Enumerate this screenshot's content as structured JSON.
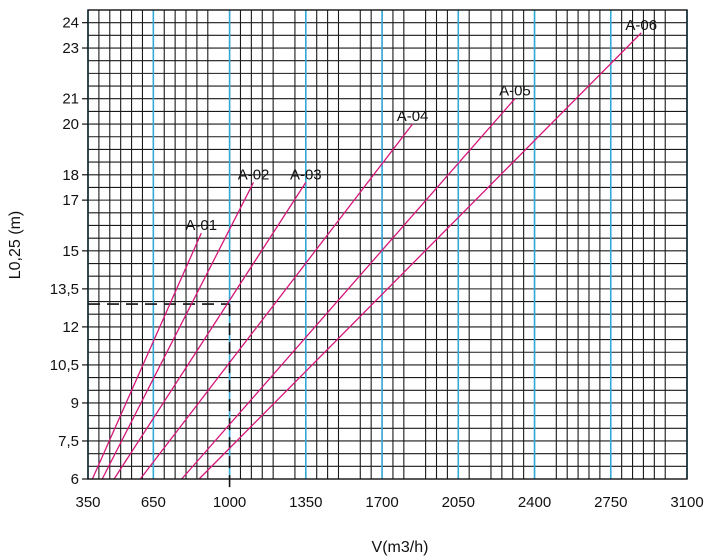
{
  "chart_data": {
    "type": "line",
    "xlabel": "V(m3/h)",
    "ylabel": "L0,25 (m)",
    "xlim": [
      350,
      3100
    ],
    "ylim": [
      6,
      24.5
    ],
    "x_ticks": [
      "350",
      "650",
      "1000",
      "1350",
      "1700",
      "2050",
      "2400",
      "2750",
      "3100"
    ],
    "y_ticks": [
      "6",
      "7,5",
      "9",
      "10,5",
      "12",
      "13,5",
      "15",
      "17",
      "18",
      "20",
      "21",
      "23",
      "24"
    ],
    "grid": true,
    "colors": {
      "grid_minor": "#1a1a1a",
      "grid_major": "#33a9d6",
      "series": "#d6177a",
      "reference": "#111111"
    },
    "series": [
      {
        "name": "A-01",
        "x": [
          370,
          870
        ],
        "y": [
          6,
          15.7
        ]
      },
      {
        "name": "A-02",
        "x": [
          415,
          1110
        ],
        "y": [
          6,
          17.7
        ]
      },
      {
        "name": "A-03",
        "x": [
          470,
          1350
        ],
        "y": [
          6,
          17.7
        ]
      },
      {
        "name": "A-04",
        "x": [
          590,
          1840
        ],
        "y": [
          6,
          20.0
        ]
      },
      {
        "name": "A-05",
        "x": [
          780,
          2310
        ],
        "y": [
          6,
          21.0
        ]
      },
      {
        "name": "A-06",
        "x": [
          860,
          2890
        ],
        "y": [
          6,
          23.6
        ]
      }
    ],
    "reference_point": {
      "x": 1000,
      "y": 12.9
    }
  }
}
